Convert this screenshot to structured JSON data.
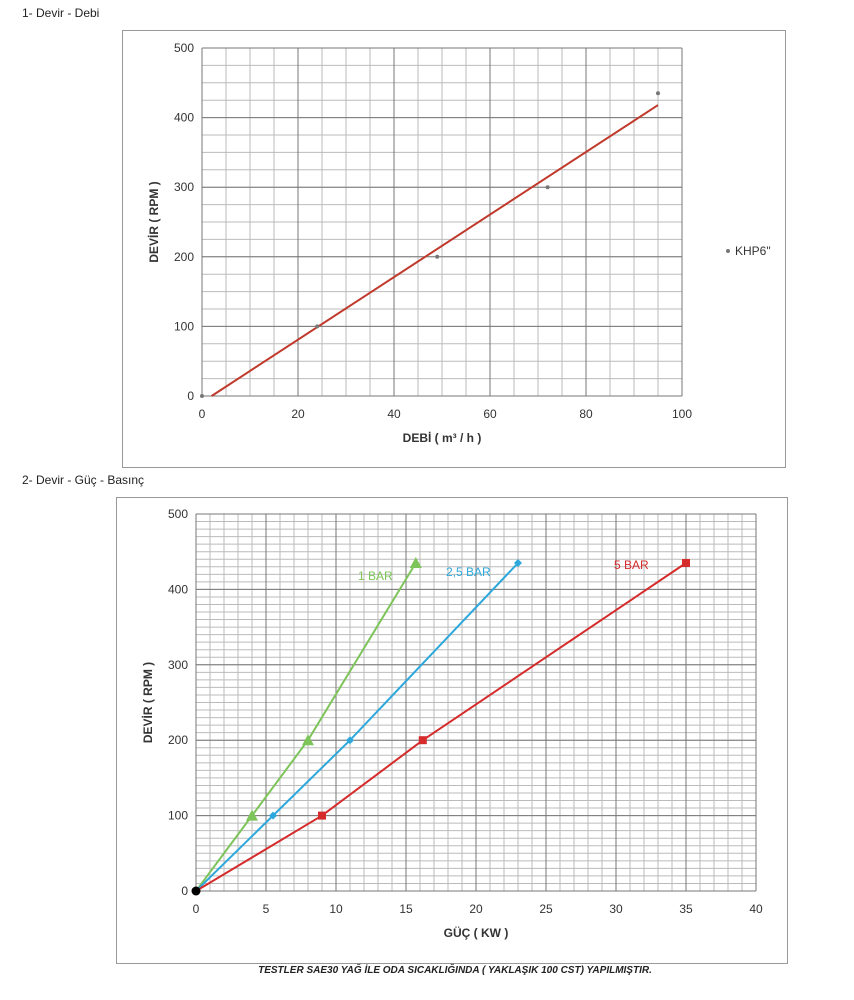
{
  "section1_title": "1- Devir - Debi",
  "section2_title": "2- Devir - Güç - Basınç",
  "caption": "TESTLER SAE30 YAĞ İLE ODA SICAKLIĞINDA ( YAKLAŞIK 100 CST) YAPILMIŞTIR.",
  "chart_data": [
    {
      "type": "scatter",
      "xlabel": "DEBİ ( m³ / h )",
      "ylabel": "DEVİR ( RPM )",
      "xlim": [
        0,
        100
      ],
      "ylim": [
        0,
        500
      ],
      "xticks": [
        "0",
        "20",
        "40",
        "60",
        "80",
        "100"
      ],
      "yticks": [
        "0",
        "100",
        "200",
        "300",
        "400",
        "500"
      ],
      "grid": true,
      "legend": "right",
      "series": [
        {
          "name": "KHP6\"",
          "color": "#777777",
          "x": [
            0,
            24,
            49,
            72,
            95
          ],
          "y": [
            0,
            100,
            200,
            300,
            435
          ]
        }
      ],
      "trendline": {
        "color": "#c0392b",
        "x": [
          2,
          95
        ],
        "y": [
          0,
          418
        ]
      }
    },
    {
      "type": "line",
      "xlabel": "GÜÇ ( KW )",
      "ylabel": "DEVİR ( RPM )",
      "xlim": [
        0,
        40
      ],
      "ylim": [
        0,
        500
      ],
      "xticks": [
        "0",
        "5",
        "10",
        "15",
        "20",
        "25",
        "30",
        "35",
        "40"
      ],
      "yticks": [
        "0",
        "100",
        "200",
        "300",
        "400",
        "500"
      ],
      "grid": true,
      "series": [
        {
          "name": "1 BAR",
          "color": "#7dc45a",
          "marker": "triangle",
          "x": [
            0,
            4,
            8,
            15.7
          ],
          "y": [
            0,
            100,
            200,
            435
          ]
        },
        {
          "name": "2,5 BAR",
          "color": "#2ea8dc",
          "marker": "diamond",
          "x": [
            0,
            5.5,
            11,
            23
          ],
          "y": [
            0,
            100,
            200,
            435
          ]
        },
        {
          "name": "5 BAR",
          "color": "#d62b2b",
          "marker": "square",
          "x": [
            0,
            9,
            16.2,
            35
          ],
          "y": [
            0,
            100,
            200,
            435
          ]
        }
      ]
    }
  ]
}
